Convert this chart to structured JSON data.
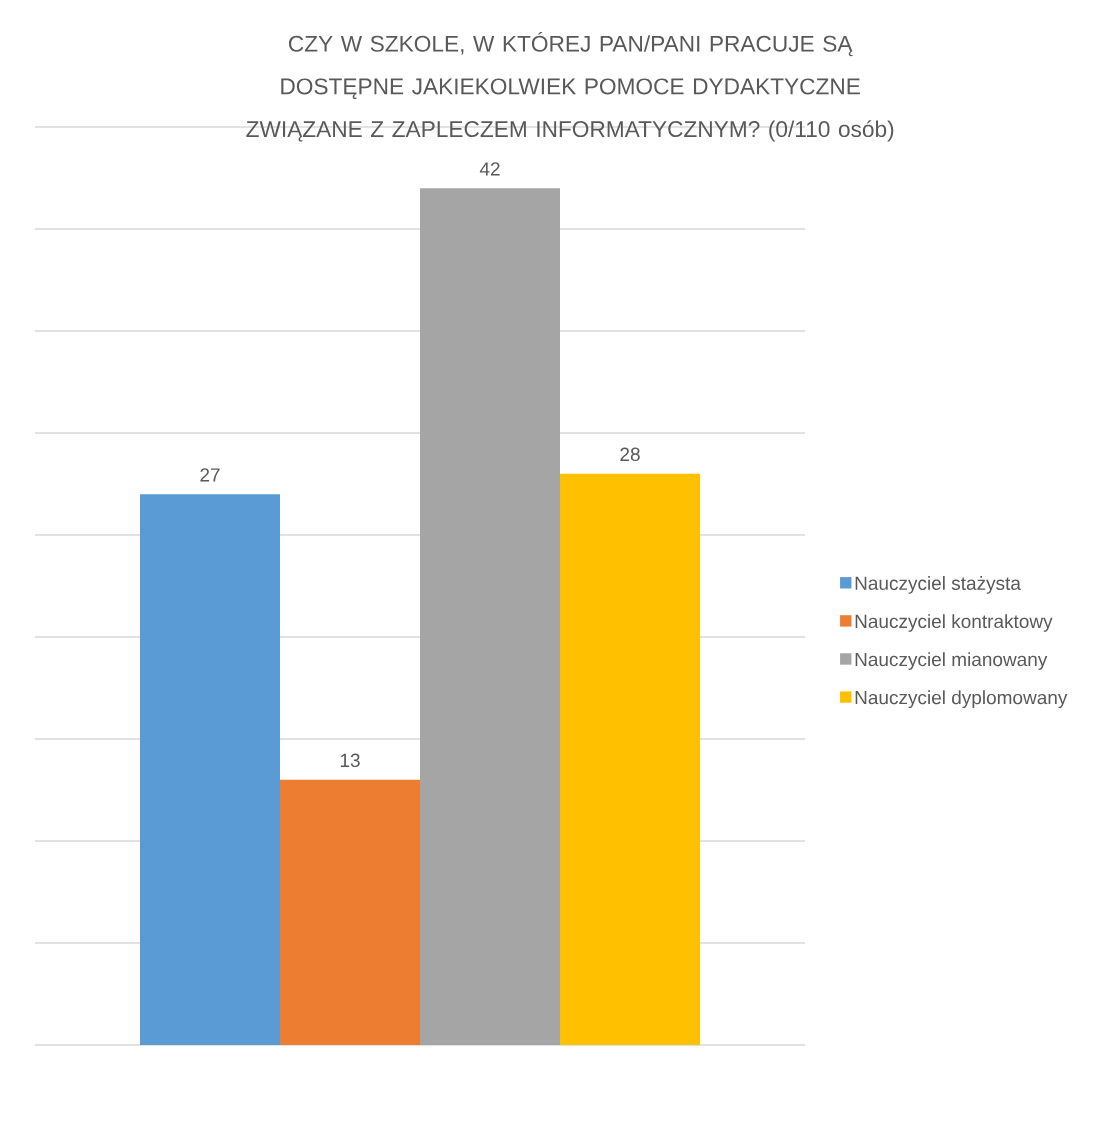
{
  "chart_data": {
    "type": "bar",
    "title": "CZY W SZKOLE, W KTÓREJ PAN/PANI PRACUJE SĄ DOSTĘPNE JAKIEKOLWIEK POMOCE DYDAKTYCZNE ZWIĄZANE Z ZAPLECZEM INFORMATYCZNYM? (0/110 osób)",
    "categories": [
      null
    ],
    "series": [
      {
        "name": "Nauczyciel stażysta",
        "color": "#5b9bd5",
        "values": [
          27
        ]
      },
      {
        "name": "Nauczyciel kontraktowy",
        "color": "#ed7d31",
        "values": [
          13
        ]
      },
      {
        "name": "Nauczyciel mianowany",
        "color": "#a5a5a5",
        "values": [
          42
        ]
      },
      {
        "name": "Nauczyciel dyplomowany",
        "color": "#ffc000",
        "values": [
          28
        ]
      }
    ],
    "ylim": [
      0,
      45
    ],
    "yticks": [
      {
        "value": 0,
        "label": null
      },
      {
        "value": 5,
        "label": null
      },
      {
        "value": 10,
        "label": null
      },
      {
        "value": 15,
        "label": null
      },
      {
        "value": 20,
        "label": null
      },
      {
        "value": 25,
        "label": null
      },
      {
        "value": 30,
        "label": null
      },
      {
        "value": 35,
        "label": null
      },
      {
        "value": 40,
        "label": null
      },
      {
        "value": 45,
        "label": null
      }
    ],
    "grid": "y",
    "legend": "right",
    "data_labels": true
  }
}
